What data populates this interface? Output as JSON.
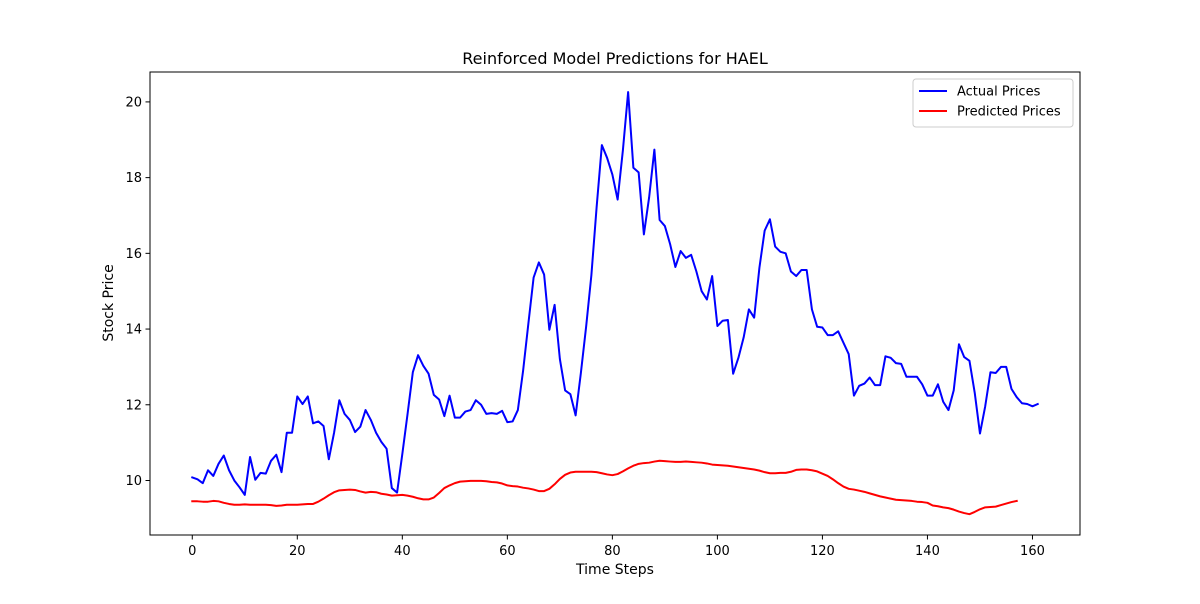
{
  "chart_data": {
    "type": "line",
    "title": "Reinforced Model Predictions for HAEL",
    "xlabel": "Time Steps",
    "ylabel": "Stock Price",
    "xlim": [
      -8.05,
      169.05
    ],
    "ylim": [
      8.56,
      20.79
    ],
    "xticks": [
      0,
      20,
      40,
      60,
      80,
      100,
      120,
      140,
      160
    ],
    "yticks": [
      10,
      12,
      14,
      16,
      18,
      20
    ],
    "grid": false,
    "legend_position": "upper right",
    "series": [
      {
        "name": "Actual Prices",
        "color": "#0000ff",
        "values": [
          10.08,
          10.03,
          9.93,
          10.27,
          10.12,
          10.44,
          10.66,
          10.27,
          10.0,
          9.82,
          9.62,
          10.62,
          10.02,
          10.2,
          10.18,
          10.52,
          10.68,
          10.22,
          11.26,
          11.26,
          12.22,
          12.02,
          12.22,
          11.51,
          11.56,
          11.44,
          10.56,
          11.26,
          12.12,
          11.76,
          11.6,
          11.28,
          11.42,
          11.86,
          11.6,
          11.26,
          11.02,
          10.84,
          9.8,
          9.68,
          10.7,
          11.76,
          12.86,
          13.31,
          13.03,
          12.82,
          12.26,
          12.14,
          11.7,
          12.24,
          11.66,
          11.66,
          11.82,
          11.86,
          12.12,
          12.0,
          11.76,
          11.78,
          11.76,
          11.84,
          11.54,
          11.56,
          11.86,
          12.9,
          14.14,
          15.36,
          15.76,
          15.44,
          13.98,
          14.64,
          13.21,
          12.38,
          12.28,
          11.72,
          12.84,
          14.06,
          15.42,
          17.22,
          18.86,
          18.52,
          18.08,
          17.42,
          18.72,
          20.26,
          18.26,
          18.14,
          16.5,
          17.48,
          18.74,
          16.88,
          16.72,
          16.24,
          15.64,
          16.06,
          15.88,
          15.96,
          15.52,
          15.0,
          14.78,
          15.4,
          14.08,
          14.22,
          14.24,
          12.82,
          13.24,
          13.78,
          14.52,
          14.3,
          15.62,
          16.6,
          16.9,
          16.18,
          16.04,
          16.0,
          15.52,
          15.4,
          15.56,
          15.56,
          14.52,
          14.06,
          14.04,
          13.84,
          13.84,
          13.94,
          13.64,
          13.34,
          12.24,
          12.5,
          12.56,
          12.72,
          12.52,
          12.52,
          13.28,
          13.24,
          13.1,
          13.08,
          12.74,
          12.74,
          12.74,
          12.54,
          12.24,
          12.24,
          12.54,
          12.08,
          11.86,
          12.38,
          13.6,
          13.26,
          13.16,
          12.32,
          11.24,
          11.96,
          12.86,
          12.84,
          13.0,
          13.0,
          12.42,
          12.2,
          12.04,
          12.02,
          11.96,
          12.02
        ]
      },
      {
        "name": "Predicted Prices",
        "color": "#ff0000",
        "values": [
          9.45,
          9.45,
          9.44,
          9.44,
          9.46,
          9.45,
          9.41,
          9.38,
          9.36,
          9.36,
          9.37,
          9.36,
          9.36,
          9.36,
          9.36,
          9.35,
          9.33,
          9.34,
          9.36,
          9.36,
          9.36,
          9.37,
          9.38,
          9.38,
          9.44,
          9.52,
          9.61,
          9.69,
          9.74,
          9.75,
          9.76,
          9.75,
          9.71,
          9.68,
          9.7,
          9.69,
          9.65,
          9.63,
          9.6,
          9.61,
          9.62,
          9.6,
          9.57,
          9.53,
          9.5,
          9.5,
          9.55,
          9.67,
          9.8,
          9.87,
          9.93,
          9.97,
          9.98,
          9.99,
          9.99,
          9.99,
          9.98,
          9.96,
          9.95,
          9.92,
          9.87,
          9.85,
          9.84,
          9.81,
          9.79,
          9.76,
          9.72,
          9.72,
          9.78,
          9.9,
          10.04,
          10.15,
          10.21,
          10.23,
          10.23,
          10.23,
          10.23,
          10.22,
          10.19,
          10.16,
          10.14,
          10.17,
          10.24,
          10.32,
          10.39,
          10.44,
          10.46,
          10.47,
          10.5,
          10.52,
          10.51,
          10.5,
          10.49,
          10.49,
          10.5,
          10.49,
          10.48,
          10.47,
          10.45,
          10.42,
          10.41,
          10.4,
          10.39,
          10.37,
          10.35,
          10.33,
          10.31,
          10.29,
          10.26,
          10.22,
          10.19,
          10.19,
          10.2,
          10.2,
          10.23,
          10.28,
          10.29,
          10.29,
          10.27,
          10.24,
          10.18,
          10.12,
          10.03,
          9.93,
          9.84,
          9.78,
          9.76,
          9.73,
          9.7,
          9.66,
          9.62,
          9.58,
          9.55,
          9.52,
          9.49,
          9.48,
          9.47,
          9.46,
          9.44,
          9.43,
          9.41,
          9.34,
          9.32,
          9.29,
          9.27,
          9.23,
          9.18,
          9.14,
          9.11,
          9.17,
          9.24,
          9.29,
          9.3,
          9.31,
          9.35,
          9.39,
          9.43,
          9.46
        ]
      }
    ]
  }
}
